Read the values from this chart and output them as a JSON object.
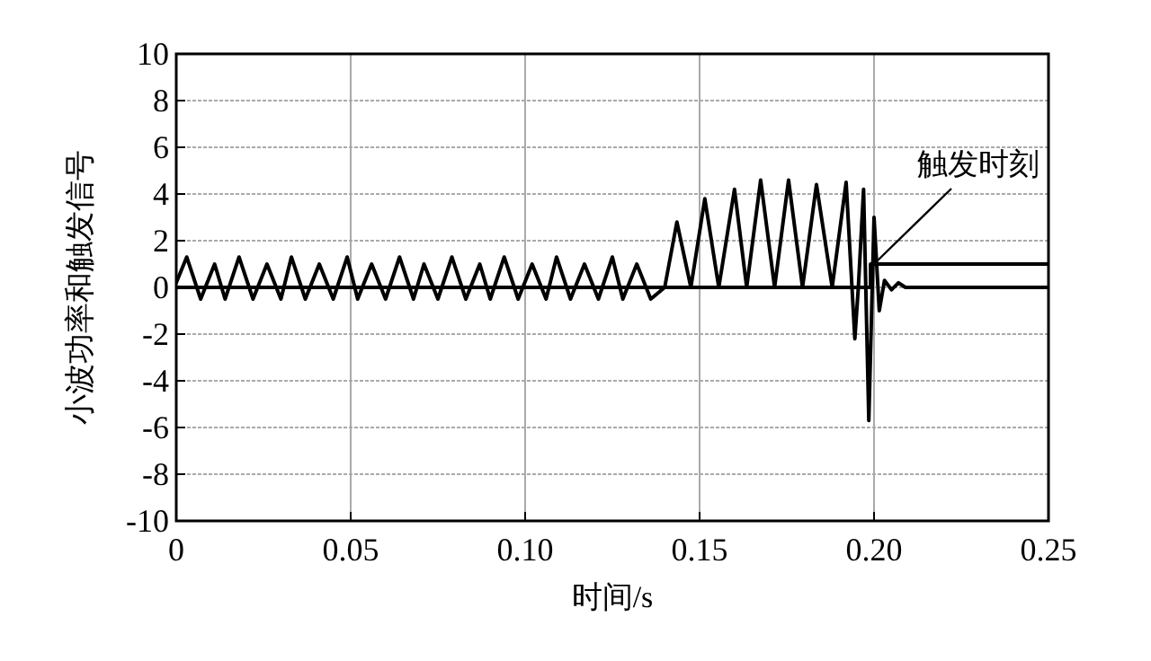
{
  "chart_data": {
    "type": "line",
    "xlabel": "时间/s",
    "ylabel": "小波功率和触发信号",
    "xlim": [
      0,
      0.25
    ],
    "ylim": [
      -10,
      10
    ],
    "xticks": [
      0,
      0.05,
      {
        "value": 0.1,
        "label": "0.10"
      },
      0.15,
      {
        "value": 0.2,
        "label": "0.20"
      },
      0.25
    ],
    "yticks": [
      -10,
      -8,
      -6,
      -4,
      -2,
      0,
      2,
      4,
      6,
      8,
      10
    ],
    "grid": true,
    "marker": "none",
    "line_style": "solid",
    "series": [
      {
        "color": "#000000",
        "x": [
          0,
          0.003,
          0.007,
          0.011,
          0.014,
          0.018,
          0.022,
          0.026,
          0.03,
          0.033,
          0.037,
          0.041,
          0.045,
          0.049,
          0.052,
          0.056,
          0.06,
          0.064,
          0.068,
          0.071,
          0.075,
          0.079,
          0.083,
          0.087,
          0.09,
          0.094,
          0.098,
          0.102,
          0.106,
          0.109,
          0.113,
          0.117,
          0.121,
          0.125,
          0.128,
          0.132,
          0.136,
          0.14,
          0.1435,
          0.1475,
          0.1515,
          0.1555,
          0.16,
          0.1635,
          0.1675,
          0.1715,
          0.1755,
          0.1795,
          0.1835,
          0.188,
          0.192,
          0.1945,
          0.1955,
          0.197,
          0.1985,
          0.2,
          0.2015,
          0.203,
          0.205,
          0.207,
          0.209,
          0.25
        ],
        "values": [
          0.2,
          1.3,
          -0.5,
          1.0,
          -0.5,
          1.3,
          -0.5,
          1.0,
          -0.5,
          1.3,
          -0.5,
          1.0,
          -0.5,
          1.3,
          -0.5,
          1.0,
          -0.5,
          1.3,
          -0.5,
          1.0,
          -0.5,
          1.3,
          -0.5,
          1.0,
          -0.5,
          1.3,
          -0.5,
          1.0,
          -0.5,
          1.3,
          -0.5,
          1.0,
          -0.5,
          1.3,
          -0.5,
          1.0,
          -0.5,
          0,
          2.8,
          0,
          3.8,
          0,
          4.2,
          0,
          4.6,
          0,
          4.6,
          0,
          4.4,
          0,
          4.5,
          -2.2,
          0,
          4.2,
          -5.7,
          3.0,
          -1.0,
          0.3,
          -0.1,
          0.2,
          0,
          0
        ]
      },
      {
        "color": "#000000",
        "x": [
          0,
          0.199,
          0.199,
          0.25
        ],
        "values": [
          0,
          0,
          1,
          1
        ]
      }
    ],
    "annotations": [
      {
        "text": "触发时刻",
        "x": 0.2,
        "y": 1
      }
    ]
  }
}
